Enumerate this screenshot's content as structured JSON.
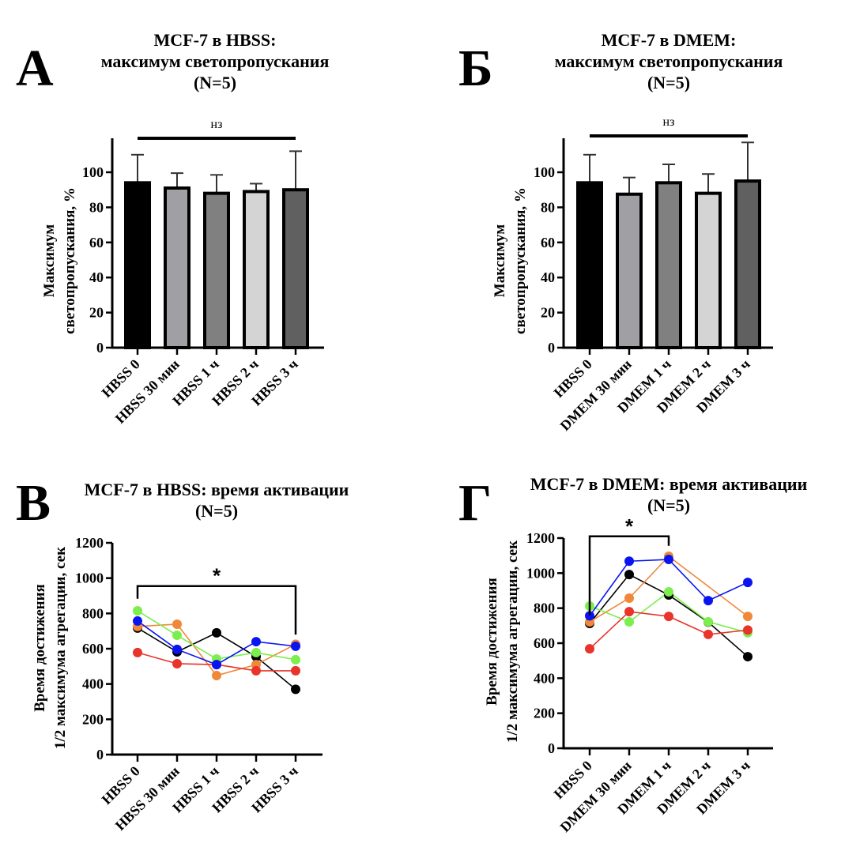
{
  "chart_data": [
    {
      "panel": "А",
      "type": "bar",
      "title": [
        "MCF-7 в HBSS:",
        "максимум светопропускания",
        "(N=5)"
      ],
      "xlabel": "",
      "ylabel": [
        "Максимум",
        "светопропускания, %"
      ],
      "ylim": [
        0,
        120
      ],
      "yticks": [
        0,
        20,
        40,
        60,
        80,
        100
      ],
      "ytick_labels": [
        "0",
        "20",
        "40",
        "60",
        "80",
        "100"
      ],
      "grid": false,
      "categories": [
        "HBSS 0",
        "HBSS 30 мин",
        "HBSS 1 ч",
        "HBSS 2 ч",
        "HBSS 3 ч"
      ],
      "values": [
        94,
        91,
        88,
        89,
        90
      ],
      "error_upper": [
        110,
        99.5,
        98.5,
        93.5,
        112
      ],
      "bar_colors": [
        "#000000",
        "#a0a0a4",
        "#808080",
        "#d4d4d4",
        "#606060"
      ],
      "significance": {
        "from": 0,
        "to": 4,
        "label": "нз",
        "style": "line"
      }
    },
    {
      "panel": "Б",
      "type": "bar",
      "title": [
        "MCF-7 в DMEM:",
        "максимум светопропускания",
        "(N=5)"
      ],
      "xlabel": "",
      "ylabel": [
        "Максимум",
        "светопропускания, %"
      ],
      "ylim": [
        0,
        120
      ],
      "yticks": [
        0,
        20,
        40,
        60,
        80,
        100
      ],
      "ytick_labels": [
        "0",
        "20",
        "40",
        "60",
        "80",
        "100"
      ],
      "grid": false,
      "categories": [
        "HBSS 0",
        "DMEM 30 мин",
        "DMEM 1 ч",
        "DMEM 2 ч",
        "DMEM 3 ч"
      ],
      "values": [
        94,
        87.5,
        94,
        88,
        95
      ],
      "error_upper": [
        110,
        97,
        104.5,
        99,
        117
      ],
      "bar_colors": [
        "#000000",
        "#a0a0a4",
        "#808080",
        "#d4d4d4",
        "#606060"
      ],
      "significance": {
        "from": 0,
        "to": 4,
        "label": "нз",
        "style": "line"
      }
    },
    {
      "panel": "В",
      "type": "line",
      "title": [
        "MCF-7 в HBSS: время активации",
        "(N=5)"
      ],
      "xlabel": "",
      "ylabel": [
        "Время достижения",
        "1/2 максимума агрегации, сек"
      ],
      "ylim": [
        0,
        1200
      ],
      "yticks": [
        0,
        200,
        400,
        600,
        800,
        1000,
        1200
      ],
      "ytick_labels": [
        "0",
        "200",
        "400",
        "600",
        "800",
        "1000",
        "1200"
      ],
      "grid": false,
      "categories": [
        "HBSS 0",
        "HBSS 30 мин",
        "HBSS 1 ч",
        "HBSS 2 ч",
        "HBSS 3 ч"
      ],
      "series": [
        {
          "name": "black",
          "color": "#000000",
          "values": [
            717,
            582,
            690,
            555,
            370
          ]
        },
        {
          "name": "orange",
          "color": "#f0883a",
          "values": [
            726,
            739,
            448,
            510,
            625
          ]
        },
        {
          "name": "green",
          "color": "#7cee4e",
          "values": [
            815,
            676,
            542,
            578,
            538
          ]
        },
        {
          "name": "red",
          "color": "#e8342a",
          "values": [
            578,
            515,
            510,
            475,
            475
          ]
        },
        {
          "name": "blue",
          "color": "#0a14f0",
          "values": [
            757,
            596,
            510,
            640,
            614
          ]
        }
      ],
      "significance": {
        "from": 0,
        "to": 4,
        "label": "*",
        "style": "bracket",
        "level": 955
      }
    },
    {
      "panel": "Г",
      "type": "line",
      "title": [
        "MCF-7 в DMEM: время активации",
        "(N=5)"
      ],
      "xlabel": "",
      "ylabel": [
        "Время достижения",
        "1/2 максимума агрегации, сек"
      ],
      "ylim": [
        0,
        1200
      ],
      "yticks": [
        0,
        200,
        400,
        600,
        800,
        1000,
        1200
      ],
      "ytick_labels": [
        "0",
        "200",
        "400",
        "600",
        "800",
        "1000",
        "1200"
      ],
      "grid": false,
      "categories": [
        "HBSS 0",
        "DMEM 30 мин",
        "DMEM 1 ч",
        "DMEM 2 ч",
        "DMEM 3 ч"
      ],
      "series": [
        {
          "name": "black",
          "color": "#000000",
          "values": [
            713,
            992,
            875,
            720,
            523
          ]
        },
        {
          "name": "orange",
          "color": "#f0883a",
          "values": [
            722,
            857,
            1096,
            null,
            753
          ]
        },
        {
          "name": "green",
          "color": "#7cee4e",
          "values": [
            812,
            722,
            893,
            722,
            660
          ]
        },
        {
          "name": "red",
          "color": "#e8342a",
          "values": [
            568,
            780,
            753,
            650,
            675
          ]
        },
        {
          "name": "blue",
          "color": "#0a14f0",
          "values": [
            756,
            1068,
            1078,
            843,
            947
          ]
        }
      ],
      "significance": {
        "from": 0,
        "to": 2,
        "label": "*",
        "style": "bracket",
        "level": 1210
      }
    }
  ],
  "panel_letters": [
    "А",
    "Б",
    "В",
    "Г"
  ]
}
